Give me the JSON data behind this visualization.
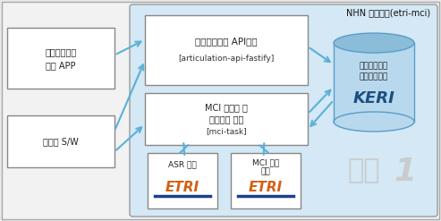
{
  "bg_color": "#eef5fb",
  "cloud_bg": "#d4e8f5",
  "cloud_border": "#aaaaaa",
  "box_fill": "#ffffff",
  "box_border": "#888888",
  "left_box_fill": "#ffffff",
  "left_box_border": "#888888",
  "arrow_color": "#5ab0d8",
  "title_cloud": "NHN 클라우드(etri-mci)",
  "box_api_line1": "경도인지장애 API서버",
  "box_api_line2": "[articulation-api-fastify]",
  "box_mci_line1": "MCI 데이터 및",
  "box_mci_line2": "세션관리 모듈",
  "box_mci_line3": "[mci-task]",
  "box_asr_line1": "ASR 모듈",
  "box_pred_line1": "MCI 예측",
  "box_pred_line2": "모듈",
  "etri_orange": "#d45f10",
  "etri_blue": "#1a3f8c",
  "left_top_line1": "경도인지장애",
  "left_top_line2": "예측 APP",
  "left_bot_line1": "관리자 S/W",
  "db_title1": "경도인지장애",
  "db_title2": "데이터베이스",
  "db_keri": "KERI",
  "db_fill": "#b8d8ee",
  "db_top_fill": "#8bbdd8",
  "db_border": "#5a9dc8",
  "news1_color": "#cccccc",
  "outer_bg": "#e8e8e8"
}
